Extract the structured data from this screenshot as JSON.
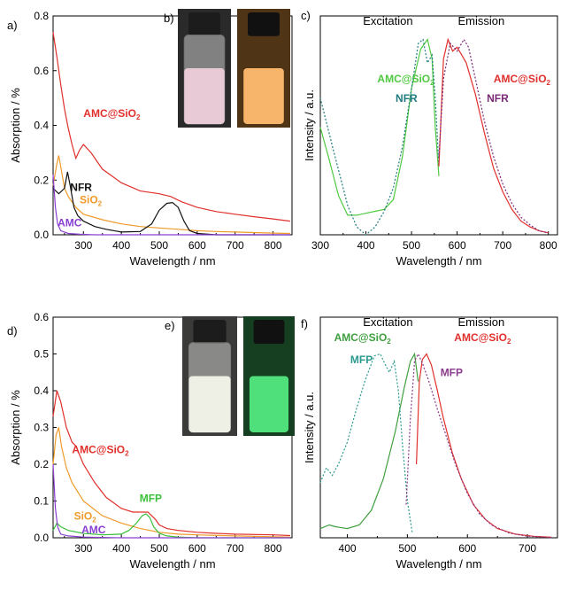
{
  "panels": {
    "a": "a)",
    "b": "b)",
    "c": "c)",
    "d": "d)",
    "e": "e)",
    "f": "f)"
  },
  "chart_data": [
    {
      "id": "a",
      "type": "line",
      "xlabel": "Wavelength / nm",
      "ylabel": "Absorption / %",
      "xlim": [
        220,
        850
      ],
      "ylim": [
        0,
        0.8
      ],
      "xticks": [
        "300",
        "400",
        "500",
        "600",
        "700",
        "800"
      ],
      "xtick_values": [
        300,
        400,
        500,
        600,
        700,
        800
      ],
      "yticks": [
        "0.0",
        "0.2",
        "0.4",
        "0.6",
        "0.8"
      ],
      "ytick_values": [
        0,
        0.2,
        0.4,
        0.6,
        0.8
      ],
      "series": [
        {
          "name": "AMC@SiO2",
          "color": "#e0302c",
          "x": [
            220,
            230,
            240,
            250,
            260,
            270,
            280,
            290,
            300,
            320,
            350,
            400,
            450,
            500,
            530,
            560,
            600,
            650,
            700,
            750,
            800,
            845
          ],
          "y": [
            0.74,
            0.65,
            0.55,
            0.46,
            0.39,
            0.33,
            0.28,
            0.31,
            0.33,
            0.3,
            0.24,
            0.19,
            0.16,
            0.15,
            0.14,
            0.12,
            0.1,
            0.085,
            0.075,
            0.066,
            0.058,
            0.05
          ]
        },
        {
          "name": "SiO2",
          "color": "#f09a2a",
          "x": [
            220,
            230,
            235,
            240,
            250,
            260,
            280,
            300,
            350,
            400,
            450,
            500,
            550,
            600,
            650,
            700,
            750,
            800,
            845
          ],
          "y": [
            0.18,
            0.26,
            0.29,
            0.25,
            0.17,
            0.14,
            0.1,
            0.075,
            0.055,
            0.04,
            0.03,
            0.025,
            0.02,
            0.015,
            0.012,
            0.01,
            0.008,
            0.006,
            0.005
          ]
        },
        {
          "name": "NFR",
          "color": "#111111",
          "x": [
            220,
            235,
            250,
            258,
            265,
            275,
            285,
            300,
            330,
            360,
            400,
            450,
            480,
            500,
            520,
            535,
            550,
            565,
            580,
            600,
            650,
            700,
            800,
            845
          ],
          "y": [
            0.17,
            0.15,
            0.17,
            0.23,
            0.18,
            0.1,
            0.07,
            0.05,
            0.03,
            0.02,
            0.01,
            0.012,
            0.04,
            0.09,
            0.115,
            0.118,
            0.1,
            0.05,
            0.015,
            0.005,
            0,
            0,
            0,
            0
          ]
        },
        {
          "name": "AMC",
          "color": "#8a3fd1",
          "x": [
            220,
            226,
            232,
            240,
            260,
            290,
            330,
            400,
            500,
            600,
            700,
            845
          ],
          "y": [
            0.22,
            0.1,
            0.04,
            0.015,
            0.005,
            0.002,
            0,
            0,
            0,
            0,
            0,
            0
          ]
        }
      ],
      "labels": [
        {
          "series": 0,
          "text": "AMC@SiO",
          "sub": "2",
          "color": "#e0302c",
          "at": [
            300,
            0.43
          ]
        },
        {
          "series": 2,
          "text": "NFR",
          "sub": "",
          "color": "#111111",
          "at": [
            265,
            0.16
          ]
        },
        {
          "series": 1,
          "text": "SiO",
          "sub": "2",
          "color": "#f09a2a",
          "at": [
            290,
            0.115
          ]
        },
        {
          "series": 3,
          "text": "AMC",
          "sub": "",
          "color": "#8a3fd1",
          "at": [
            232,
            0.03
          ]
        }
      ]
    },
    {
      "id": "c",
      "type": "line",
      "xlabel": "Wavelength / nm",
      "ylabel": "Intensity / a.u.",
      "xlim": [
        300,
        820
      ],
      "ylim": [
        0,
        1.12
      ],
      "xticks": [
        "300",
        "400",
        "500",
        "600",
        "700",
        "800"
      ],
      "xtick_values": [
        300,
        400,
        500,
        600,
        700,
        800
      ],
      "yticks": [],
      "ytick_values": [],
      "headers": [
        "Excitation",
        "Emission"
      ],
      "series": [
        {
          "name": "AMC@SiO2 excitation",
          "color": "#4fc940",
          "dash": false,
          "x": [
            300,
            320,
            340,
            360,
            380,
            400,
            420,
            440,
            460,
            480,
            500,
            520,
            535,
            545,
            552,
            560
          ],
          "y": [
            0.55,
            0.38,
            0.2,
            0.1,
            0.1,
            0.11,
            0.12,
            0.13,
            0.18,
            0.4,
            0.75,
            0.95,
            1.0,
            0.9,
            0.55,
            0.3
          ]
        },
        {
          "name": "NFR excitation",
          "color": "#1f7c80",
          "dash": true,
          "x": [
            300,
            330,
            360,
            380,
            400,
            420,
            440,
            460,
            480,
            500,
            515,
            525,
            535,
            545,
            552,
            560
          ],
          "y": [
            0.7,
            0.42,
            0.15,
            0.04,
            0.0,
            0.04,
            0.12,
            0.24,
            0.45,
            0.75,
            0.98,
            1.0,
            0.88,
            0.92,
            0.7,
            0.35
          ]
        },
        {
          "name": "AMC@SiO2 emission",
          "color": "#e0302c",
          "dash": false,
          "x": [
            560,
            570,
            580,
            590,
            600,
            610,
            620,
            640,
            660,
            680,
            700,
            720,
            740,
            760,
            780,
            800
          ],
          "y": [
            0.35,
            0.9,
            1.0,
            0.94,
            0.96,
            0.92,
            0.88,
            0.72,
            0.52,
            0.34,
            0.22,
            0.13,
            0.07,
            0.04,
            0.02,
            0.01
          ]
        },
        {
          "name": "NFR emission",
          "color": "#7a2a78",
          "dash": true,
          "x": [
            560,
            570,
            585,
            600,
            615,
            625,
            640,
            660,
            680,
            700,
            720,
            740,
            760,
            780,
            800
          ],
          "y": [
            0.4,
            0.8,
            0.98,
            0.94,
            1.0,
            0.96,
            0.8,
            0.58,
            0.4,
            0.26,
            0.16,
            0.09,
            0.05,
            0.02,
            0.01
          ]
        }
      ],
      "labels": [
        {
          "text": "AMC@SiO",
          "sub": "2",
          "color": "#4fc940",
          "at": [
            425,
            0.78
          ]
        },
        {
          "text": "NFR",
          "sub": "",
          "color": "#1f7c80",
          "at": [
            465,
            0.68
          ]
        },
        {
          "text": "AMC@SiO",
          "sub": "2",
          "color": "#e0302c",
          "at": [
            680,
            0.78
          ]
        },
        {
          "text": "NFR",
          "sub": "",
          "color": "#7a2a78",
          "at": [
            665,
            0.68
          ]
        }
      ]
    },
    {
      "id": "d",
      "type": "line",
      "xlabel": "Wavelength / nm",
      "ylabel": "Absorption / %",
      "xlim": [
        220,
        850
      ],
      "ylim": [
        0,
        0.6
      ],
      "xticks": [
        "300",
        "400",
        "500",
        "600",
        "700",
        "800"
      ],
      "xtick_values": [
        300,
        400,
        500,
        600,
        700,
        800
      ],
      "yticks": [
        "0.0",
        "0.1",
        "0.2",
        "0.3",
        "0.4",
        "0.5",
        "0.6"
      ],
      "ytick_values": [
        0,
        0.1,
        0.2,
        0.3,
        0.4,
        0.5,
        0.6
      ],
      "series": [
        {
          "name": "AMC@SiO2",
          "color": "#e0302c",
          "x": [
            220,
            230,
            240,
            255,
            270,
            280,
            300,
            330,
            360,
            400,
            430,
            450,
            470,
            480,
            490,
            500,
            520,
            550,
            600,
            650,
            700,
            800,
            845
          ],
          "y": [
            0.33,
            0.4,
            0.37,
            0.3,
            0.26,
            0.25,
            0.2,
            0.15,
            0.11,
            0.08,
            0.07,
            0.07,
            0.07,
            0.06,
            0.05,
            0.035,
            0.025,
            0.02,
            0.015,
            0.012,
            0.01,
            0.008,
            0.006
          ]
        },
        {
          "name": "SiO2",
          "color": "#f09a2a",
          "x": [
            220,
            228,
            235,
            242,
            255,
            270,
            300,
            350,
            400,
            450,
            500,
            550,
            600,
            700,
            800,
            845
          ],
          "y": [
            0.2,
            0.28,
            0.3,
            0.25,
            0.19,
            0.15,
            0.1,
            0.06,
            0.04,
            0.025,
            0.015,
            0.01,
            0.008,
            0.005,
            0.003,
            0.002
          ]
        },
        {
          "name": "MFP",
          "color": "#3bbf3b",
          "x": [
            220,
            230,
            240,
            260,
            300,
            350,
            400,
            420,
            440,
            455,
            465,
            475,
            485,
            500,
            520,
            550,
            600,
            700,
            845
          ],
          "y": [
            0.02,
            0.04,
            0.03,
            0.02,
            0.012,
            0.008,
            0.01,
            0.02,
            0.04,
            0.06,
            0.065,
            0.055,
            0.03,
            0.012,
            0.005,
            0.002,
            0,
            0,
            0
          ]
        },
        {
          "name": "AMC",
          "color": "#8a3fd1",
          "x": [
            220,
            226,
            232,
            240,
            260,
            300,
            400,
            500,
            600,
            845
          ],
          "y": [
            0.2,
            0.08,
            0.03,
            0.01,
            0.005,
            0.002,
            0,
            0,
            0,
            0
          ]
        }
      ],
      "labels": [
        {
          "series": 0,
          "text": "AMC@SiO",
          "sub": "2",
          "color": "#e0302c",
          "at": [
            270,
            0.23
          ]
        },
        {
          "series": 1,
          "text": "SiO",
          "sub": "2",
          "color": "#f09a2a",
          "at": [
            275,
            0.05
          ]
        },
        {
          "series": 3,
          "text": "AMC",
          "sub": "",
          "color": "#8a3fd1",
          "at": [
            295,
            0.012
          ]
        },
        {
          "series": 2,
          "text": "MFP",
          "sub": "",
          "color": "#3bbf3b",
          "at": [
            448,
            0.097
          ]
        }
      ]
    },
    {
      "id": "f",
      "type": "line",
      "xlabel": "Wavelength / nm",
      "ylabel": "Intensity / a.u.",
      "xlim": [
        355,
        750
      ],
      "ylim": [
        0,
        1.2
      ],
      "xticks": [
        "400",
        "500",
        "600",
        "700"
      ],
      "xtick_values": [
        400,
        500,
        600,
        700
      ],
      "yticks": [],
      "ytick_values": [],
      "headers": [
        "Excitation",
        "Emission"
      ],
      "series": [
        {
          "name": "AMC@SiO2 excitation",
          "color": "#3f9f3f",
          "dash": false,
          "x": [
            355,
            370,
            380,
            400,
            420,
            440,
            460,
            480,
            495,
            505,
            512,
            518
          ],
          "y": [
            0.05,
            0.07,
            0.06,
            0.05,
            0.07,
            0.15,
            0.32,
            0.58,
            0.82,
            0.96,
            1.0,
            0.85
          ]
        },
        {
          "name": "MFP excitation",
          "color": "#2a9a8f",
          "dash": true,
          "x": [
            355,
            365,
            375,
            385,
            400,
            415,
            430,
            445,
            455,
            462,
            470,
            478,
            485,
            492,
            500,
            508
          ],
          "y": [
            0.3,
            0.38,
            0.34,
            0.4,
            0.52,
            0.7,
            0.86,
            0.99,
            1.0,
            0.95,
            0.9,
            0.96,
            0.8,
            0.5,
            0.2,
            0.03
          ]
        },
        {
          "name": "AMC@SiO2 emission",
          "color": "#e0302c",
          "dash": false,
          "x": [
            515,
            520,
            525,
            532,
            540,
            550,
            560,
            575,
            590,
            610,
            630,
            650,
            680,
            710,
            740
          ],
          "y": [
            0.4,
            0.85,
            0.97,
            1.0,
            0.94,
            0.8,
            0.65,
            0.46,
            0.32,
            0.18,
            0.1,
            0.05,
            0.02,
            0.008,
            0.003
          ]
        },
        {
          "name": "MFP emission",
          "color": "#8a3a8a",
          "dash": true,
          "x": [
            498,
            505,
            512,
            518,
            525,
            535,
            550,
            565,
            580,
            600,
            620,
            640,
            670,
            700,
            740
          ],
          "y": [
            0.18,
            0.65,
            0.96,
            1.0,
            0.95,
            0.86,
            0.7,
            0.55,
            0.4,
            0.24,
            0.13,
            0.07,
            0.025,
            0.008,
            0.002
          ]
        }
      ],
      "labels": [
        {
          "text": "AMC@SiO",
          "sub": "2",
          "color": "#3f9f3f",
          "at": [
            378,
            1.07
          ]
        },
        {
          "text": "MFP",
          "sub": "",
          "color": "#2a9a8f",
          "at": [
            405,
            0.95
          ]
        },
        {
          "text": "AMC@SiO",
          "sub": "2",
          "color": "#e0302c",
          "at": [
            578,
            1.07
          ]
        },
        {
          "text": "MFP",
          "sub": "",
          "color": "#8a3a8a",
          "at": [
            555,
            0.88
          ]
        }
      ]
    }
  ],
  "photos": {
    "b": {
      "left_liquid": "#e8c9d6",
      "right_liquid": "#f6b56a",
      "right_glow": "#f0a040"
    },
    "e": {
      "left_liquid": "#eef0e6",
      "right_liquid": "#4fe07c",
      "right_glow": "#2fbf5a"
    }
  }
}
